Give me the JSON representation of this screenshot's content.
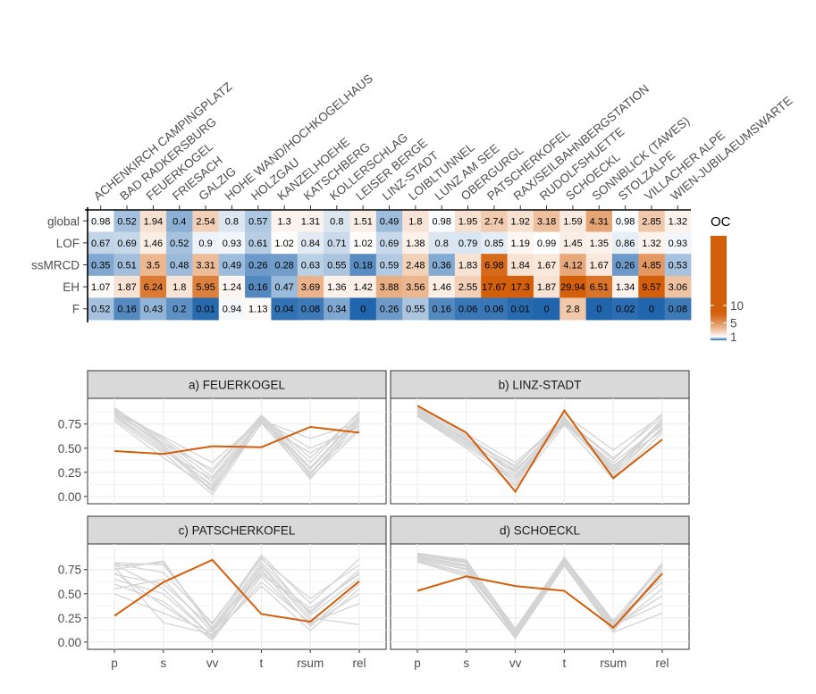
{
  "chart_data": [
    {
      "type": "heatmap",
      "title": "",
      "columns": [
        "ACHENKIRCH CAMPINGPLATZ",
        "BAD RADKERSBURG",
        "FEUERKOGEL",
        "FRIESACH",
        "GALZIG",
        "HOHE WAND/HOCHKOGELHAUS",
        "HOLZGAU",
        "KANZELHOEHE",
        "KATSCHBERG",
        "KOLLERSCHLAG",
        "LEISER BERGE",
        "LINZ-STADT",
        "LOIBLTUNNEL",
        "LUNZ AM SEE",
        "OBERGURGL",
        "PATSCHERKOFEL",
        "RAX/SEILBAHNBERGSTATION",
        "RUDOLFSHUETTE",
        "SCHOECKL",
        "SONNBLICK (TAWES)",
        "STOLZALPE",
        "VILLACHER ALPE",
        "WIEN-JUBILAEUMSWARTE"
      ],
      "rows": [
        "global",
        "LOF",
        "ssMRCD",
        "EH",
        "F"
      ],
      "values": [
        [
          "0.98",
          "0.52",
          "1.94",
          "0.4",
          "2.54",
          "0.8",
          "0.57",
          "1.3",
          "1.31",
          "0.8",
          "1.51",
          "0.49",
          "1.8",
          "0.98",
          "1.95",
          "2.74",
          "1.92",
          "3.18",
          "1.59",
          "4.31",
          "0.98",
          "2.85",
          "1.32"
        ],
        [
          "0.67",
          "0.69",
          "1.46",
          "0.52",
          "0.9",
          "0.93",
          "0.61",
          "1.02",
          "0.84",
          "0.71",
          "1.02",
          "0.69",
          "1.38",
          "0.8",
          "0.79",
          "0.85",
          "1.19",
          "0.99",
          "1.45",
          "1.35",
          "0.86",
          "1.32",
          "0.93"
        ],
        [
          "0.35",
          "0.51",
          "3.5",
          "0.48",
          "3.31",
          "0.49",
          "0.26",
          "0.28",
          "0.63",
          "0.55",
          "0.18",
          "0.59",
          "2.48",
          "0.36",
          "1.83",
          "6.98",
          "1.84",
          "1.67",
          "4.12",
          "1.67",
          "0.26",
          "4.85",
          "0.53"
        ],
        [
          "1.07",
          "1.87",
          "6.24",
          "1.8",
          "5.95",
          "1.24",
          "0.16",
          "0.47",
          "3.69",
          "1.36",
          "1.42",
          "3.88",
          "3.56",
          "1.46",
          "2.55",
          "17.67",
          "17.3",
          "1.87",
          "29.94",
          "6.51",
          "1.34",
          "9.57",
          "3.06"
        ],
        [
          "0.52",
          "0.16",
          "0.43",
          "0.2",
          "0.01",
          "0.94",
          "1.13",
          "0.04",
          "0.08",
          "0.34",
          "0",
          "0.26",
          "0.55",
          "0.16",
          "0.06",
          "0.06",
          "0.01",
          "0",
          "2.8",
          "0",
          "0.02",
          "0",
          "0.08"
        ]
      ],
      "legend": {
        "title": "OC",
        "ticks": [
          "1",
          "5",
          "10"
        ],
        "tick_values": [
          1,
          5,
          10
        ],
        "range": [
          0,
          30
        ],
        "low_color": "#2166ac",
        "mid_color": "#ffffff",
        "high_color": "#d35f0a",
        "midpoint": 1
      }
    },
    {
      "type": "line",
      "categories": [
        "p",
        "s",
        "vv",
        "t",
        "rsum",
        "rel"
      ],
      "ylim": [
        0,
        1
      ],
      "yticks": [
        "0.00",
        "0.25",
        "0.50",
        "0.75"
      ],
      "ytick_values": [
        0,
        0.25,
        0.5,
        0.75
      ],
      "highlight_color": "#d35f0a",
      "background_color": "#d4d4d4",
      "panels": [
        {
          "title": "a) FEUERKOGEL",
          "highlight": [
            0.47,
            0.44,
            0.52,
            0.51,
            0.72,
            0.66
          ],
          "background": [
            [
              0.92,
              0.55,
              0.28,
              0.84,
              0.4,
              0.86
            ],
            [
              0.88,
              0.52,
              0.1,
              0.82,
              0.22,
              0.8
            ],
            [
              0.85,
              0.5,
              0.05,
              0.8,
              0.18,
              0.78
            ],
            [
              0.9,
              0.58,
              0.2,
              0.83,
              0.3,
              0.84
            ],
            [
              0.82,
              0.48,
              0.12,
              0.78,
              0.25,
              0.7
            ],
            [
              0.87,
              0.62,
              0.35,
              0.8,
              0.5,
              0.72
            ],
            [
              0.8,
              0.45,
              0.02,
              0.76,
              0.2,
              0.68
            ],
            [
              0.86,
              0.55,
              0.15,
              0.81,
              0.28,
              0.82
            ],
            [
              0.78,
              0.4,
              0.08,
              0.75,
              0.45,
              0.74
            ],
            [
              0.91,
              0.6,
              0.25,
              0.84,
              0.35,
              0.88
            ],
            [
              0.84,
              0.47,
              0.18,
              0.79,
              0.6,
              0.76
            ],
            [
              0.89,
              0.53,
              0.06,
              0.82,
              0.24,
              0.8
            ]
          ]
        },
        {
          "title": "b) LINZ-STADT",
          "highlight": [
            0.94,
            0.66,
            0.05,
            0.89,
            0.19,
            0.59
          ],
          "background": [
            [
              0.92,
              0.65,
              0.35,
              0.8,
              0.4,
              0.82
            ],
            [
              0.88,
              0.6,
              0.22,
              0.78,
              0.3,
              0.78
            ],
            [
              0.9,
              0.58,
              0.15,
              0.82,
              0.22,
              0.8
            ],
            [
              0.86,
              0.55,
              0.28,
              0.75,
              0.35,
              0.74
            ],
            [
              0.84,
              0.52,
              0.18,
              0.76,
              0.25,
              0.7
            ],
            [
              0.91,
              0.62,
              0.3,
              0.85,
              0.48,
              0.84
            ],
            [
              0.87,
              0.57,
              0.25,
              0.79,
              0.28,
              0.76
            ],
            [
              0.89,
              0.6,
              0.12,
              0.83,
              0.2,
              0.72
            ],
            [
              0.85,
              0.54,
              0.2,
              0.77,
              0.32,
              0.68
            ],
            [
              0.9,
              0.63,
              0.26,
              0.81,
              0.26,
              0.8
            ],
            [
              0.83,
              0.5,
              0.1,
              0.74,
              0.18,
              0.66
            ],
            [
              0.88,
              0.59,
              0.32,
              0.8,
              0.38,
              0.86
            ]
          ]
        },
        {
          "title": "c) PATSCHERKOFEL",
          "highlight": [
            0.27,
            0.62,
            0.85,
            0.29,
            0.21,
            0.63
          ],
          "background": [
            [
              0.82,
              0.8,
              0.18,
              0.9,
              0.4,
              0.86
            ],
            [
              0.8,
              0.55,
              0.05,
              0.78,
              0.22,
              0.62
            ],
            [
              0.6,
              0.42,
              0.02,
              0.68,
              0.18,
              0.5
            ],
            [
              0.75,
              0.84,
              0.12,
              0.83,
              0.3,
              0.75
            ],
            [
              0.5,
              0.3,
              0.1,
              0.8,
              0.25,
              0.18
            ],
            [
              0.78,
              0.2,
              0.08,
              0.58,
              0.12,
              0.55
            ],
            [
              0.7,
              0.6,
              0.15,
              0.72,
              0.35,
              0.7
            ],
            [
              0.81,
              0.72,
              0.2,
              0.86,
              0.45,
              0.8
            ],
            [
              0.65,
              0.5,
              0.06,
              0.62,
              0.2,
              0.4
            ],
            [
              0.79,
              0.82,
              0.14,
              0.88,
              0.28,
              0.66
            ],
            [
              0.72,
              0.38,
              0.04,
              0.75,
              0.16,
              0.6
            ],
            [
              0.55,
              0.65,
              0.1,
              0.7,
              0.32,
              0.72
            ]
          ]
        },
        {
          "title": "d) SCHOECKL",
          "highlight": [
            0.53,
            0.68,
            0.58,
            0.53,
            0.15,
            0.71
          ],
          "background": [
            [
              0.92,
              0.85,
              0.1,
              0.88,
              0.18,
              0.82
            ],
            [
              0.88,
              0.78,
              0.06,
              0.85,
              0.15,
              0.7
            ],
            [
              0.9,
              0.82,
              0.12,
              0.86,
              0.12,
              0.75
            ],
            [
              0.86,
              0.75,
              0.08,
              0.83,
              0.2,
              0.62
            ],
            [
              0.84,
              0.7,
              0.05,
              0.8,
              0.14,
              0.55
            ],
            [
              0.91,
              0.84,
              0.14,
              0.87,
              0.22,
              0.8
            ],
            [
              0.87,
              0.76,
              0.09,
              0.84,
              0.16,
              0.48
            ],
            [
              0.89,
              0.8,
              0.07,
              0.82,
              0.11,
              0.72
            ],
            [
              0.85,
              0.72,
              0.11,
              0.81,
              0.17,
              0.4
            ],
            [
              0.9,
              0.83,
              0.13,
              0.86,
              0.19,
              0.78
            ],
            [
              0.83,
              0.68,
              0.04,
              0.79,
              0.1,
              0.3
            ],
            [
              0.88,
              0.79,
              0.1,
              0.85,
              0.21,
              0.66
            ]
          ]
        }
      ]
    }
  ]
}
